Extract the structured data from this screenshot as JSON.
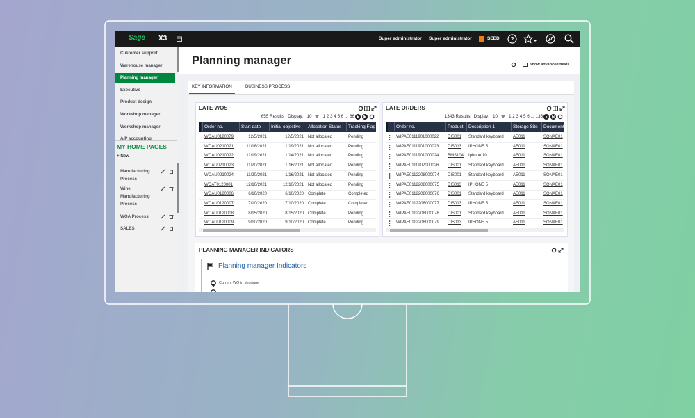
{
  "topbar": {
    "logo": "Sage",
    "app": "X3",
    "user1": "Super administrator",
    "user2": "Super administrator",
    "folder": "SEED"
  },
  "sidebar": {
    "items": [
      {
        "label": "Customer support"
      },
      {
        "label": "Warehouse manager"
      },
      {
        "label": "Planning manager",
        "selected": true
      },
      {
        "label": "Executive"
      },
      {
        "label": "Product design"
      },
      {
        "label": "Workshop manager"
      },
      {
        "label": "Workshop manager"
      },
      {
        "label": "A/P accounting"
      }
    ],
    "home_heading": "MY HOME PAGES",
    "new": "+ New",
    "pages": [
      "Manufacturing Process",
      "Wine Manufacturing Process",
      "WOA Process",
      "SALES"
    ]
  },
  "page": {
    "title": "Planning manager",
    "advanced": "Show advanced fields",
    "tabs": [
      "KEY INFORMATION",
      "BUSINESS PROCESS"
    ]
  },
  "late_wos": {
    "title": "LATE WOS",
    "results": "655 Results",
    "display_label": "Display:",
    "display_value": "10",
    "pager": "1 2 3 4 5 6 ... 66",
    "columns": [
      "Order no.",
      "Start date",
      "Initial objective",
      "Allocation Status",
      "Tracking Flag"
    ],
    "rows": [
      [
        "WOAU0120079",
        "12/5/2021",
        "12/5/2021",
        "Not allocated",
        "Pending"
      ],
      [
        "WOAU0210021",
        "11/18/2021",
        "1/19/2021",
        "Not allocated",
        "Pending"
      ],
      [
        "WOAU0210022",
        "11/19/2021",
        "1/14/2021",
        "Not allocated",
        "Pending"
      ],
      [
        "WOAU0210023",
        "11/20/2021",
        "1/16/2021",
        "Not allocated",
        "Pending"
      ],
      [
        "WOAU0210024",
        "11/20/2021",
        "1/16/2021",
        "Not allocated",
        "Pending"
      ],
      [
        "WOAT0120001",
        "12/10/2021",
        "12/10/2021",
        "Not allocated",
        "Pending"
      ],
      [
        "WOAU0120006",
        "6/10/2020",
        "6/10/2020",
        "Complete",
        "Completed"
      ],
      [
        "WOAU0120007",
        "7/10/2020",
        "7/10/2020",
        "Complete",
        "Completed"
      ],
      [
        "WOAU0120008",
        "8/15/2020",
        "8/15/2020",
        "Complete",
        "Pending"
      ],
      [
        "WOAU0120009",
        "9/10/2020",
        "9/10/2020",
        "Complete",
        "Pending"
      ]
    ]
  },
  "late_orders": {
    "title": "LATE ORDERS",
    "results": "1343 Results",
    "display_label": "Display:",
    "display_value": "10",
    "pager": "1 2 3 4 5 6 ... 135",
    "columns": [
      "Order no.",
      "Product",
      "Description 1",
      "Storage Site",
      "Document"
    ],
    "rows": [
      [
        "WIPAE0111901000022",
        "DIS001",
        "Standard keyboard",
        "AE011",
        "SONAE01"
      ],
      [
        "WIPAE0111901000023",
        "DIS013",
        "IPHONE 5",
        "AE011",
        "SONAE01"
      ],
      [
        "WIPAE0111901000024",
        "BMS104",
        "Iphone 10",
        "AE011",
        "SONAE01"
      ],
      [
        "WIPAE0111902000026",
        "DIS001",
        "Standard keyboard",
        "AE011",
        "SONAE01"
      ],
      [
        "WIPAE0112208000074",
        "DIS001",
        "Standard keyboard",
        "AE011",
        "SONAE01"
      ],
      [
        "WIPAE0112208000075",
        "DIS013",
        "IPHONE 5",
        "AE011",
        "SONAE01"
      ],
      [
        "WIPAE0112208000076",
        "DIS001",
        "Standard keyboard",
        "AE011",
        "SONAE01"
      ],
      [
        "WIPAE0112208000077",
        "DIS013",
        "IPHONE 5",
        "AE011",
        "SONAE01"
      ],
      [
        "WIPAE0112208000078",
        "DIS001",
        "Standard keyboard",
        "AE011",
        "SONAE01"
      ],
      [
        "WIPAE0112208000079",
        "DIS013",
        "IPHONE 5",
        "AE011",
        "SONAE01"
      ]
    ]
  },
  "indicators": {
    "title": "PLANNING MANAGER INDICATORS",
    "card_title": "Planning manager Indicators",
    "items": [
      "Current WO in shortage"
    ]
  }
}
